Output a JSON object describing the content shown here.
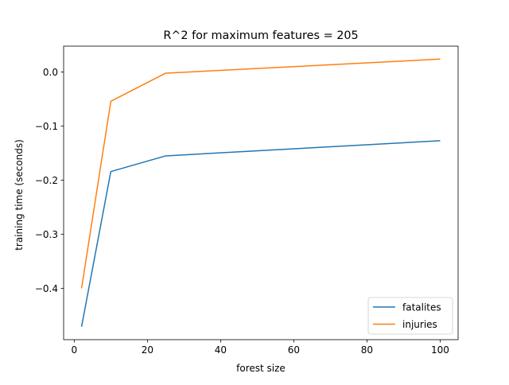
{
  "chart_data": {
    "type": "line",
    "title": "R^2 for maximum features  = 205",
    "xlabel": "forest size",
    "ylabel": "training time (seconds)",
    "xlim": [
      -2.9,
      104.9
    ],
    "ylim": [
      -0.495,
      0.048
    ],
    "xticks": [
      0,
      20,
      40,
      60,
      80,
      100
    ],
    "xtick_labels": [
      "0",
      "20",
      "40",
      "60",
      "80",
      "100"
    ],
    "yticks": [
      -0.4,
      -0.3,
      -0.2,
      -0.1,
      0.0
    ],
    "ytick_labels": [
      "−0.4",
      "−0.3",
      "−0.2",
      "−0.1",
      "0.0"
    ],
    "grid": false,
    "legend_position": "lower-right",
    "series": [
      {
        "name": "fatalites",
        "color": "#1f77b4",
        "x": [
          2,
          10,
          25,
          100
        ],
        "y": [
          -0.471,
          -0.184,
          -0.155,
          -0.127
        ]
      },
      {
        "name": "injuries",
        "color": "#ff7f0e",
        "x": [
          2,
          10,
          25,
          100
        ],
        "y": [
          -0.4,
          -0.054,
          -0.002,
          0.024
        ]
      }
    ]
  }
}
